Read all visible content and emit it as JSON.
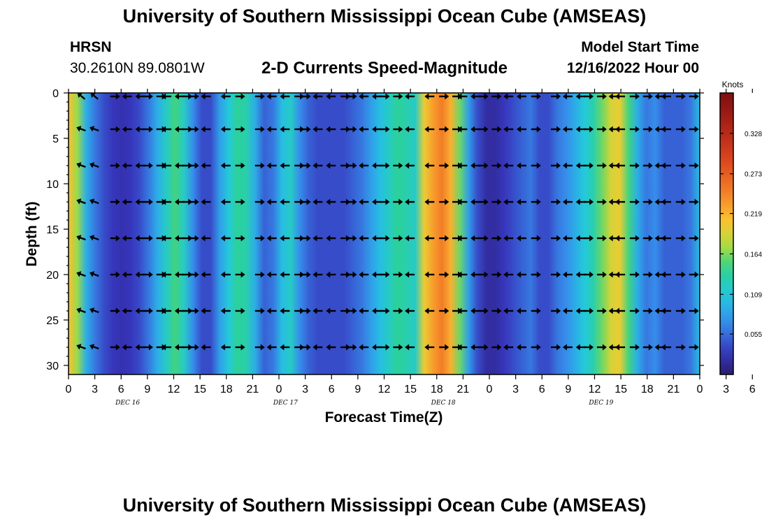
{
  "header": {
    "title": "University of Southern Mississippi Ocean Cube (AMSEAS)",
    "station": "HRSN",
    "location": "30.2610N  89.0801W",
    "subtitle": "2-D Currents Speed-Magnitude",
    "model_start_label": "Model Start Time",
    "model_start_value": "12/16/2022 Hour 00"
  },
  "footer": {
    "title": "University of Southern Mississippi Ocean Cube (AMSEAS)"
  },
  "chart_data": {
    "type": "heatmap",
    "title": "2-D Currents Speed-Magnitude",
    "xlabel": "Forecast Time(Z)",
    "ylabel": "Depth (ft)",
    "xlim": [
      0,
      72
    ],
    "ylim": [
      0,
      31
    ],
    "x_tick_labels": [
      "0",
      "3",
      "6",
      "9",
      "12",
      "15",
      "18",
      "21",
      "0",
      "3",
      "6",
      "9",
      "12",
      "15",
      "18",
      "21",
      "0",
      "3",
      "6",
      "9",
      "12",
      "15",
      "18",
      "21",
      "0",
      "3",
      "6",
      "9",
      "12",
      "15",
      "18",
      "21",
      "0"
    ],
    "y_ticks": [
      0,
      5,
      10,
      15,
      20,
      25,
      30
    ],
    "y_tick_labels": [
      "0",
      "5",
      "10",
      "15",
      "20",
      "25",
      "30"
    ],
    "day_labels": [
      "DEC 16",
      "DEC 17",
      "DEC 18",
      "DEC 19"
    ],
    "day_centers_hours": [
      9,
      33,
      57,
      81
    ],
    "colorbar": {
      "label": "Knots",
      "min": 0.0,
      "max": 0.383,
      "ticks": [
        0.055,
        0.109,
        0.164,
        0.219,
        0.273,
        0.328
      ],
      "tick_labels": [
        "0.055",
        "0.109",
        "0.164",
        "0.219",
        "0.273",
        "0.328"
      ]
    },
    "speed_by_hour": [
      0.21,
      0.17,
      0.09,
      0.06,
      0.04,
      0.03,
      0.025,
      0.03,
      0.04,
      0.06,
      0.09,
      0.12,
      0.15,
      0.12,
      0.07,
      0.04,
      0.04,
      0.08,
      0.11,
      0.14,
      0.13,
      0.09,
      0.05,
      0.06,
      0.1,
      0.12,
      0.07,
      0.05,
      0.04,
      0.04,
      0.04,
      0.04,
      0.05,
      0.06,
      0.08,
      0.1,
      0.12,
      0.14,
      0.13,
      0.12,
      0.2,
      0.23,
      0.25,
      0.22,
      0.16,
      0.08,
      0.04,
      0.02,
      0.02,
      0.03,
      0.04,
      0.05,
      0.06,
      0.04,
      0.04,
      0.06,
      0.07,
      0.09,
      0.11,
      0.13,
      0.16,
      0.19,
      0.2,
      0.15,
      0.09,
      0.06,
      0.07,
      0.05,
      0.05,
      0.05,
      0.06,
      0.1
    ],
    "vector_depths": [
      0,
      4,
      8,
      12,
      16,
      20,
      24,
      28
    ],
    "vector_hours": [
      2,
      4,
      7,
      9,
      11,
      12,
      14,
      15,
      17,
      18,
      19,
      21,
      24,
      26,
      29,
      31,
      33,
      35,
      36,
      38,
      40,
      42,
      43,
      45,
      47,
      48,
      50,
      52,
      55,
      57,
      59,
      60,
      62,
      63,
      65,
      67,
      69,
      71,
      74,
      76,
      78,
      79,
      81,
      83,
      84,
      86,
      88,
      90,
      91,
      93,
      95
    ]
  }
}
